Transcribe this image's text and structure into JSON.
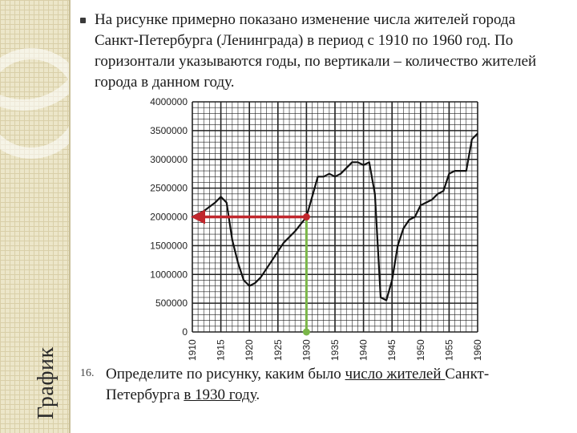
{
  "sidebar": {
    "title": "График"
  },
  "intro": {
    "text": "На рисунке примерно показано изменение числа жителей города Санкт-Петербурга (Ленинграда) в период с 1910 по 1960 год. По горизонтали указываются годы, по вертикали – количество жителей города в данном году."
  },
  "question": {
    "number": "16.",
    "part1": "Определите по рисунку, каким было ",
    "part2": "число жителей ",
    "part3": "Санкт-Петербурга ",
    "part4": "в 1930 году",
    "part5": "."
  },
  "colors": {
    "arrow_red": "#c0272d",
    "guide_green": "#7ab648",
    "line": "#111111",
    "grid": "#222222"
  },
  "chart_data": {
    "type": "line",
    "xlim": [
      1910,
      1960
    ],
    "ylim": [
      0,
      4000000
    ],
    "x_ticks": [
      "1910",
      "1915",
      "1920",
      "1925",
      "1930",
      "1935",
      "1940",
      "1945",
      "1950",
      "1955",
      "1960"
    ],
    "y_ticks": [
      "0",
      "500000",
      "1000000",
      "1500000",
      "2000000",
      "2500000",
      "3000000",
      "3500000",
      "4000000"
    ],
    "grid": true,
    "x": [
      1910,
      1912,
      1914,
      1915,
      1916,
      1917,
      1918,
      1919,
      1920,
      1921,
      1922,
      1924,
      1926,
      1928,
      1930,
      1931,
      1932,
      1933,
      1934,
      1935,
      1936,
      1938,
      1939,
      1940,
      1941,
      1942,
      1943,
      1944,
      1945,
      1946,
      1947,
      1948,
      1949,
      1950,
      1952,
      1953,
      1954,
      1955,
      1956,
      1958,
      1959,
      1960
    ],
    "y": [
      2000000,
      2100000,
      2250000,
      2350000,
      2250000,
      1600000,
      1200000,
      900000,
      800000,
      850000,
      950000,
      1250000,
      1550000,
      1750000,
      2000000,
      2350000,
      2700000,
      2700000,
      2750000,
      2700000,
      2750000,
      2950000,
      2950000,
      2900000,
      2950000,
      2400000,
      600000,
      550000,
      900000,
      1500000,
      1800000,
      1950000,
      2000000,
      2200000,
      2300000,
      2400000,
      2450000,
      2750000,
      2800000,
      2800000,
      3350000,
      3450000
    ],
    "annotation_year": 1930,
    "annotation_value": 2000000
  }
}
